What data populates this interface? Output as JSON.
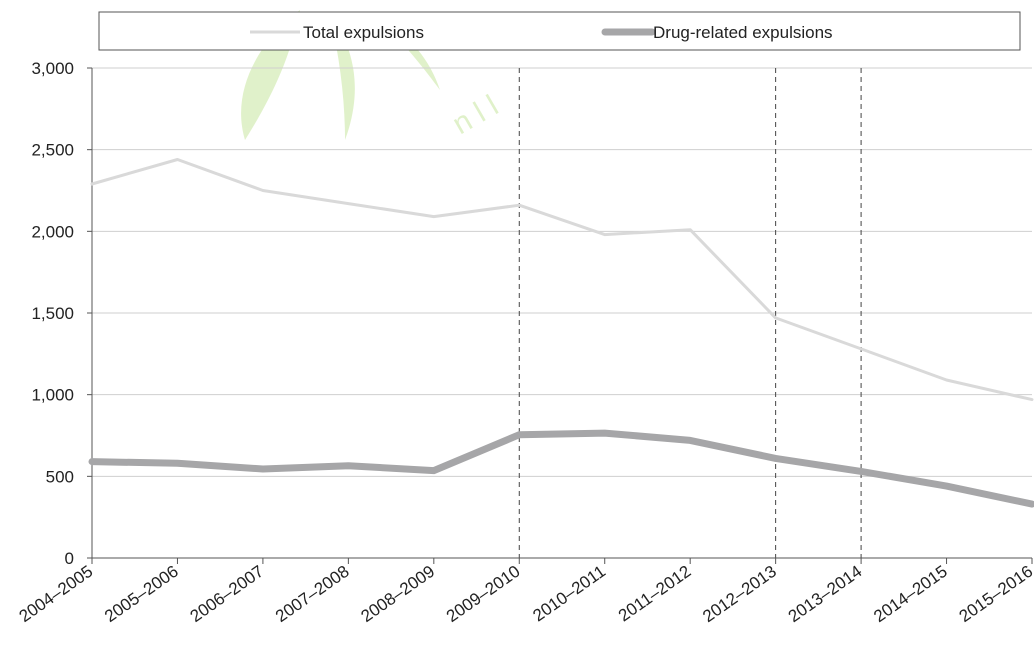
{
  "chart_data": {
    "type": "line",
    "categories": [
      "2004–2005",
      "2005–2006",
      "2006–2007",
      "2007–2008",
      "2008–2009",
      "2009–2010",
      "2010–2011",
      "2011–2012",
      "2012–2013",
      "2013–2014",
      "2014–2015",
      "2015–2016"
    ],
    "series": [
      {
        "name": "Total expulsions",
        "values": [
          2290,
          2440,
          2250,
          2170,
          2090,
          2160,
          1980,
          2010,
          1470,
          1280,
          1090,
          970
        ],
        "color": "#d9d9d9",
        "line_weight": "thin"
      },
      {
        "name": "Drug-related expulsions",
        "values": [
          590,
          580,
          545,
          565,
          535,
          755,
          765,
          720,
          610,
          530,
          440,
          330
        ],
        "color": "#a6a6a8",
        "line_weight": "thick"
      }
    ],
    "y_ticks": [
      "0",
      "500",
      "1,000",
      "1,500",
      "2,000",
      "2,500",
      "3,000"
    ],
    "ylim": [
      0,
      3000
    ],
    "grid": true,
    "legend_placement": "top",
    "reference_lines_at": [
      "2009–2010",
      "2012–2013",
      "2013–2014"
    ],
    "title": "",
    "xlabel": "",
    "ylabel": ""
  }
}
